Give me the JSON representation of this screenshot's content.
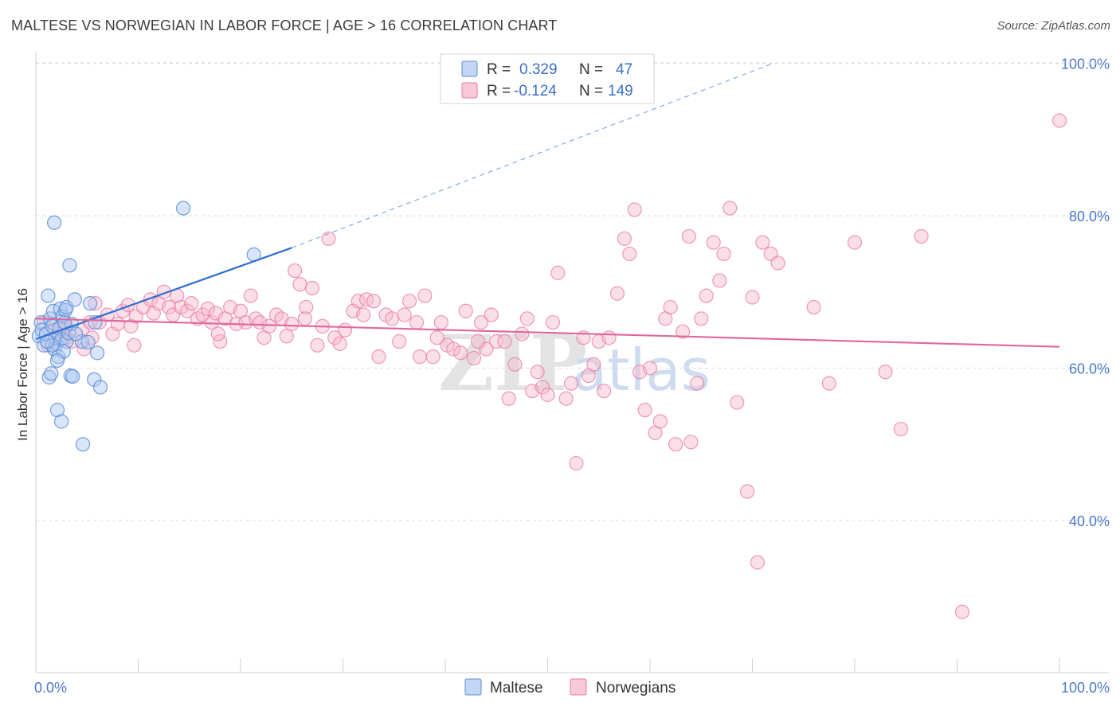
{
  "header": {
    "title": "MALTESE VS NORWEGIAN IN LABOR FORCE | AGE > 16 CORRELATION CHART",
    "source": "Source: ZipAtlas.com"
  },
  "watermark": {
    "zip": "ZIP",
    "atlas": "atlas"
  },
  "colors": {
    "maltese": "#5b8fd6",
    "maltese_line": "#2e6fd1",
    "maltese_fill": "#aac6ef",
    "norwegian": "#e87aa0",
    "norwegian_line": "#e0679a",
    "norwegian_fill": "#f6b9cd",
    "grid": "#dcdcdc",
    "axis_text": "#4a78c8"
  },
  "legend": {
    "r_label": "R =",
    "n_label": "N =",
    "rows": [
      {
        "name": "Maltese",
        "r": "0.329",
        "n": "47"
      },
      {
        "name": "Norwegians",
        "r": "-0.124",
        "n": "149"
      }
    ]
  },
  "chart_data": {
    "type": "scatter",
    "title": "MALTESE VS NORWEGIAN IN LABOR FORCE | AGE > 16 CORRELATION CHART",
    "xlabel": "",
    "ylabel": "In Labor Force | Age > 16",
    "xlim": [
      0,
      100
    ],
    "ylim": [
      20,
      102
    ],
    "x_tick_labels": [
      "0.0%",
      "100.0%"
    ],
    "y_ticks": [
      40,
      60,
      80,
      100
    ],
    "y_tick_labels": [
      "40.0%",
      "60.0%",
      "80.0%",
      "100.0%"
    ],
    "grid": true,
    "series": [
      {
        "name": "Maltese",
        "r": 0.329,
        "n": 47,
        "trend": {
          "x0": 0,
          "y0": 63.8,
          "x1": 25,
          "y1": 75.8,
          "dashed_to_x": 72,
          "dashed_to_y": 100
        },
        "points": [
          [
            0.3,
            64.2
          ],
          [
            0.5,
            66.0
          ],
          [
            0.6,
            65.0
          ],
          [
            0.8,
            63.0
          ],
          [
            1.0,
            64.5
          ],
          [
            1.2,
            69.5
          ],
          [
            1.4,
            66.5
          ],
          [
            1.6,
            65.5
          ],
          [
            1.8,
            62.5
          ],
          [
            1.3,
            58.8
          ],
          [
            1.5,
            59.3
          ],
          [
            2.0,
            63.2
          ],
          [
            2.2,
            61.5
          ],
          [
            1.7,
            67.5
          ],
          [
            2.4,
            67.8
          ],
          [
            2.6,
            66.8
          ],
          [
            2.9,
            67.6
          ],
          [
            1.9,
            64.0
          ],
          [
            2.3,
            65.2
          ],
          [
            2.5,
            63.8
          ],
          [
            3.0,
            63.5
          ],
          [
            2.7,
            62.2
          ],
          [
            2.1,
            61.0
          ],
          [
            3.2,
            64.6
          ],
          [
            3.5,
            65.8
          ],
          [
            3.4,
            59.0
          ],
          [
            3.6,
            58.9
          ],
          [
            3.3,
            73.5
          ],
          [
            1.8,
            79.1
          ],
          [
            2.1,
            54.5
          ],
          [
            2.5,
            53.0
          ],
          [
            3.0,
            68.0
          ],
          [
            3.8,
            69.0
          ],
          [
            4.5,
            63.5
          ],
          [
            5.1,
            63.4
          ],
          [
            5.3,
            68.5
          ],
          [
            5.8,
            66.0
          ],
          [
            6.0,
            62.0
          ],
          [
            5.7,
            58.5
          ],
          [
            6.3,
            57.5
          ],
          [
            4.6,
            50.0
          ],
          [
            1.6,
            63.0
          ],
          [
            2.8,
            66.0
          ],
          [
            3.9,
            64.5
          ],
          [
            1.1,
            63.5
          ],
          [
            14.4,
            81.0
          ],
          [
            21.3,
            74.9
          ]
        ]
      },
      {
        "name": "Norwegians",
        "r": -0.124,
        "n": 149,
        "trend": {
          "x0": 0,
          "y0": 66.5,
          "x1": 100,
          "y1": 62.8
        },
        "points": [
          [
            0.8,
            66.0
          ],
          [
            1.2,
            63.0
          ],
          [
            1.8,
            65.0
          ],
          [
            2.2,
            64.5
          ],
          [
            2.6,
            65.5
          ],
          [
            3.0,
            64.0
          ],
          [
            3.5,
            63.5
          ],
          [
            4.5,
            65.0
          ],
          [
            5.3,
            66.0
          ],
          [
            4.7,
            62.5
          ],
          [
            5.5,
            64.0
          ],
          [
            6.2,
            66.0
          ],
          [
            7.0,
            67.0
          ],
          [
            7.5,
            64.5
          ],
          [
            8.0,
            65.8
          ],
          [
            8.5,
            67.5
          ],
          [
            9.0,
            68.3
          ],
          [
            9.3,
            65.5
          ],
          [
            9.8,
            66.8
          ],
          [
            10.5,
            68.0
          ],
          [
            11.2,
            69.0
          ],
          [
            11.5,
            67.2
          ],
          [
            12.0,
            68.5
          ],
          [
            12.5,
            70.0
          ],
          [
            13.0,
            68.0
          ],
          [
            13.4,
            67.0
          ],
          [
            13.8,
            69.5
          ],
          [
            14.2,
            68.0
          ],
          [
            14.8,
            67.5
          ],
          [
            15.2,
            68.5
          ],
          [
            15.8,
            66.5
          ],
          [
            16.3,
            67.0
          ],
          [
            16.8,
            67.8
          ],
          [
            17.2,
            66.0
          ],
          [
            17.6,
            67.2
          ],
          [
            18.0,
            63.5
          ],
          [
            18.5,
            66.5
          ],
          [
            19.0,
            68.0
          ],
          [
            19.6,
            65.8
          ],
          [
            20.0,
            67.5
          ],
          [
            20.5,
            66.0
          ],
          [
            21.0,
            69.5
          ],
          [
            21.5,
            66.5
          ],
          [
            21.9,
            66.0
          ],
          [
            22.3,
            64.0
          ],
          [
            22.8,
            65.5
          ],
          [
            23.5,
            67.0
          ],
          [
            24.0,
            66.5
          ],
          [
            24.5,
            64.2
          ],
          [
            25.0,
            65.8
          ],
          [
            25.3,
            72.8
          ],
          [
            25.8,
            71.0
          ],
          [
            26.4,
            68.0
          ],
          [
            27.0,
            70.5
          ],
          [
            27.5,
            63.0
          ],
          [
            28.0,
            65.5
          ],
          [
            28.6,
            77.0
          ],
          [
            29.2,
            64.0
          ],
          [
            29.7,
            63.2
          ],
          [
            30.2,
            65.0
          ],
          [
            31.0,
            67.5
          ],
          [
            31.5,
            68.8
          ],
          [
            32.0,
            67.0
          ],
          [
            32.3,
            69.0
          ],
          [
            33.0,
            68.8
          ],
          [
            33.5,
            61.5
          ],
          [
            34.2,
            67.0
          ],
          [
            34.8,
            66.5
          ],
          [
            35.5,
            63.5
          ],
          [
            36.0,
            67.0
          ],
          [
            36.5,
            68.8
          ],
          [
            37.5,
            61.5
          ],
          [
            38.0,
            69.5
          ],
          [
            38.8,
            61.5
          ],
          [
            39.2,
            64.0
          ],
          [
            39.6,
            66.0
          ],
          [
            40.2,
            63.0
          ],
          [
            40.8,
            62.5
          ],
          [
            41.5,
            62.0
          ],
          [
            42.0,
            67.5
          ],
          [
            42.8,
            61.3
          ],
          [
            43.5,
            66.0
          ],
          [
            44.0,
            62.5
          ],
          [
            44.5,
            67.0
          ],
          [
            45.0,
            63.5
          ],
          [
            45.8,
            63.5
          ],
          [
            46.2,
            56.0
          ],
          [
            46.8,
            60.5
          ],
          [
            47.5,
            64.5
          ],
          [
            48.0,
            66.5
          ],
          [
            48.5,
            57.0
          ],
          [
            49.0,
            59.5
          ],
          [
            49.5,
            57.5
          ],
          [
            50.0,
            56.5
          ],
          [
            50.5,
            66.0
          ],
          [
            51.0,
            72.5
          ],
          [
            51.8,
            56.0
          ],
          [
            52.3,
            58.0
          ],
          [
            52.8,
            47.5
          ],
          [
            53.5,
            64.0
          ],
          [
            54.0,
            59.0
          ],
          [
            54.5,
            60.5
          ],
          [
            55.0,
            63.5
          ],
          [
            55.5,
            57.0
          ],
          [
            56.0,
            64.0
          ],
          [
            56.8,
            69.8
          ],
          [
            57.5,
            77.0
          ],
          [
            58.0,
            75.0
          ],
          [
            58.5,
            80.8
          ],
          [
            59.0,
            59.5
          ],
          [
            59.5,
            54.5
          ],
          [
            60.0,
            60.0
          ],
          [
            60.5,
            51.5
          ],
          [
            61.0,
            53.0
          ],
          [
            61.5,
            66.5
          ],
          [
            62.0,
            68.0
          ],
          [
            62.5,
            50.0
          ],
          [
            63.2,
            64.8
          ],
          [
            63.8,
            77.3
          ],
          [
            64.0,
            50.3
          ],
          [
            64.6,
            58.0
          ],
          [
            65.0,
            66.5
          ],
          [
            65.5,
            69.5
          ],
          [
            66.2,
            76.5
          ],
          [
            66.8,
            71.5
          ],
          [
            67.2,
            75.0
          ],
          [
            67.8,
            81.0
          ],
          [
            68.5,
            55.5
          ],
          [
            69.5,
            43.8
          ],
          [
            70.0,
            69.3
          ],
          [
            70.5,
            34.5
          ],
          [
            71.0,
            76.5
          ],
          [
            71.8,
            75.0
          ],
          [
            72.5,
            73.8
          ],
          [
            76.0,
            68.0
          ],
          [
            77.5,
            58.0
          ],
          [
            80.0,
            76.5
          ],
          [
            83.0,
            59.5
          ],
          [
            84.5,
            52.0
          ],
          [
            86.5,
            77.3
          ],
          [
            90.5,
            28.0
          ],
          [
            100.0,
            92.5
          ],
          [
            3.0,
            65.5
          ],
          [
            5.8,
            68.5
          ],
          [
            9.6,
            63.0
          ],
          [
            17.8,
            64.5
          ],
          [
            26.3,
            66.5
          ],
          [
            37.2,
            66.0
          ],
          [
            43.2,
            63.5
          ]
        ]
      }
    ]
  },
  "bottom_legend": {
    "items": [
      "Maltese",
      "Norwegians"
    ]
  }
}
